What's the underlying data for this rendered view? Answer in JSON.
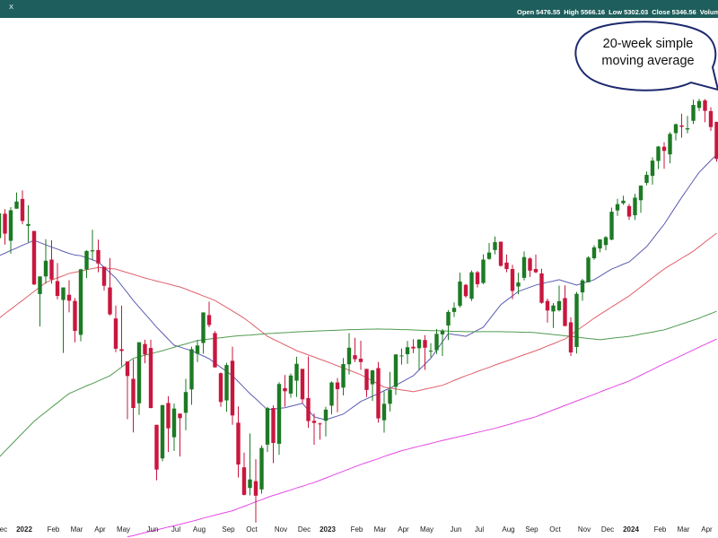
{
  "toolbar": {
    "symbol": "X",
    "fields": [
      {
        "label": "Open",
        "value": 5476.55
      },
      {
        "label": "High",
        "value": 5566.16
      },
      {
        "label": "Low",
        "value": 5302.03
      },
      {
        "label": "Close",
        "value": 5346.56
      },
      {
        "label": "Volume"
      }
    ]
  },
  "chart_data": {
    "type": "candlestick",
    "annotation": "20-week simple moving average",
    "log_scale": true,
    "ylim": [
      3445,
      5685
    ],
    "up_color": "#1d7a24",
    "down_color": "#c8173f",
    "categories": [
      "Dec",
      null,
      null,
      null,
      "2022",
      null,
      null,
      null,
      null,
      "Feb",
      null,
      null,
      null,
      "Mar",
      null,
      null,
      null,
      "Apr",
      null,
      null,
      null,
      "May",
      null,
      null,
      null,
      null,
      "Jun",
      null,
      null,
      null,
      "Jul",
      null,
      null,
      null,
      "Aug",
      null,
      null,
      null,
      null,
      "Sep",
      null,
      null,
      null,
      "Oct",
      null,
      null,
      null,
      null,
      "Nov",
      null,
      null,
      null,
      "Dec",
      null,
      null,
      null,
      "2023",
      null,
      null,
      null,
      null,
      "Feb",
      null,
      null,
      null,
      "Mar",
      null,
      null,
      null,
      "Apr",
      null,
      null,
      null,
      "May",
      null,
      null,
      null,
      null,
      "Jun",
      null,
      null,
      null,
      "Jul",
      null,
      null,
      null,
      null,
      "Aug",
      null,
      null,
      null,
      "Sep",
      null,
      null,
      null,
      "Oct",
      null,
      null,
      null,
      null,
      "Nov",
      null,
      null,
      null,
      "Dec",
      null,
      null,
      null,
      "2024",
      null,
      null,
      null,
      null,
      "Feb",
      null,
      null,
      null,
      "Mar",
      null,
      null,
      null,
      "Apr",
      null,
      null
    ],
    "open": [
      4600,
      4710,
      4588,
      4733,
      4778,
      4655,
      4632,
      4357,
      4432,
      4505,
      4412,
      4332,
      4354,
      4328,
      4188,
      4462,
      4541,
      4547,
      4474,
      4385,
      4255,
      4130,
      4081,
      4013,
      3919,
      4151,
      4135,
      3838,
      3715,
      3920,
      3792,
      3880,
      3883,
      3972,
      4112,
      4155,
      4269,
      4195,
      4035,
      3930,
      4084,
      3846,
      3683,
      3610,
      3634,
      3605,
      3765,
      3901,
      3768,
      3977,
      3956,
      4006,
      4052,
      3939,
      3853,
      3843,
      3853,
      3910,
      3999,
      3979,
      4070,
      4106,
      4092,
      4052,
      3992,
      4055,
      3855,
      3917,
      3982,
      4103,
      4110,
      4140,
      4134,
      4167,
      4124,
      4126,
      4190,
      4226,
      4282,
      4308,
      4396,
      4337,
      4450,
      4404,
      4508,
      4547,
      4584,
      4492,
      4464,
      4389,
      4426,
      4510,
      4464,
      4445,
      4328,
      4284,
      4289,
      4340,
      4239,
      4139,
      4364,
      4407,
      4511,
      4554,
      4569,
      4593,
      4725,
      4758,
      4745,
      4703,
      4772,
      4853,
      4886,
      4957,
      5026,
      4989,
      5093,
      5131,
      5111,
      5154,
      5219,
      5257,
      5203,
      5149
    ],
    "high": [
      4713,
      4731,
      4740,
      4808,
      4818,
      4749,
      4632,
      4432,
      4595,
      4590,
      4490,
      4385,
      4416,
      4340,
      4465,
      4546,
      4637,
      4593,
      4474,
      4512,
      4308,
      4308,
      4081,
      4090,
      4158,
      4168,
      4168,
      3838,
      3913,
      3946,
      3918,
      3880,
      4013,
      4140,
      4167,
      4280,
      4325,
      4203,
      4038,
      4076,
      4140,
      3907,
      3736,
      3806,
      3712,
      3762,
      3906,
      3911,
      4000,
      4028,
      4034,
      4100,
      4052,
      4101,
      3880,
      3846,
      3906,
      4003,
      4016,
      4095,
      4195,
      4176,
      4164,
      4052,
      4048,
      4079,
      3964,
      4040,
      4110,
      4133,
      4163,
      4170,
      4170,
      4187,
      4154,
      4212,
      4212,
      4290,
      4322,
      4448,
      4400,
      4458,
      4456,
      4528,
      4578,
      4607,
      4584,
      4527,
      4482,
      4448,
      4541,
      4515,
      4527,
      4465,
      4338,
      4319,
      4393,
      4394,
      4260,
      4366,
      4421,
      4520,
      4568,
      4595,
      4609,
      4738,
      4779,
      4793,
      4755,
      4802,
      4842,
      4907,
      4975,
      5030,
      5048,
      5098,
      5140,
      5190,
      5179,
      5261,
      5265,
      5264,
      5222,
      5149
    ],
    "low": [
      4592,
      4571,
      4531,
      4733,
      4662,
      4582,
      4395,
      4222,
      4401,
      4401,
      4335,
      4115,
      4280,
      4158,
      4162,
      4425,
      4505,
      4450,
      4372,
      4267,
      4118,
      4062,
      3859,
      3810,
      3875,
      4074,
      3900,
      3637,
      3705,
      3738,
      3742,
      3722,
      3818,
      3913,
      4079,
      4112,
      4219,
      4057,
      3906,
      3887,
      3838,
      3647,
      3584,
      3584,
      3491,
      3590,
      3738,
      3698,
      3728,
      3906,
      3940,
      3943,
      3918,
      3827,
      3764,
      3783,
      3795,
      3877,
      3885,
      3949,
      4030,
      4079,
      4048,
      3943,
      3928,
      3846,
      3809,
      3888,
      3951,
      4069,
      4072,
      4114,
      4049,
      4048,
      4098,
      4111,
      4103,
      4167,
      4261,
      4300,
      4341,
      4328,
      4385,
      4399,
      4504,
      4528,
      4474,
      4450,
      4335,
      4356,
      4415,
      4430,
      4446,
      4316,
      4238,
      4216,
      4284,
      4223,
      4103,
      4113,
      4329,
      4407,
      4504,
      4537,
      4546,
      4590,
      4700,
      4751,
      4682,
      4682,
      4714,
      4842,
      4845,
      4918,
      4920,
      4946,
      5057,
      5070,
      5092,
      5138,
      5203,
      5147,
      5104,
      4954
    ],
    "close": [
      4712,
      4620,
      4726,
      4766,
      4677,
      4663,
      4398,
      4432,
      4500,
      4419,
      4349,
      4385,
      4329,
      4204,
      4463,
      4543,
      4546,
      4488,
      4392,
      4272,
      4132,
      4123,
      4024,
      3901,
      4158,
      4109,
      3901,
      3675,
      3912,
      3825,
      3899,
      3863,
      3962,
      4130,
      4145,
      4280,
      4228,
      4058,
      3924,
      4067,
      3873,
      3693,
      3586,
      3640,
      3583,
      3753,
      3901,
      3771,
      3993,
      3965,
      4026,
      4072,
      3934,
      3852,
      3845,
      3840,
      3895,
      3999,
      3973,
      4071,
      4136,
      4090,
      4079,
      3970,
      4046,
      3862,
      3917,
      3971,
      4109,
      4105,
      4138,
      4133,
      4169,
      4136,
      4124,
      4192,
      4205,
      4282,
      4299,
      4410,
      4348,
      4450,
      4399,
      4505,
      4536,
      4582,
      4478,
      4464,
      4370,
      4406,
      4516,
      4457,
      4450,
      4320,
      4288,
      4309,
      4327,
      4224,
      4117,
      4358,
      4415,
      4514,
      4559,
      4594,
      4604,
      4719,
      4754,
      4770,
      4697,
      4784,
      4840,
      4891,
      4959,
      5027,
      5006,
      5089,
      5137,
      5124,
      5117,
      5234,
      5254,
      5204,
      5123,
      4967
    ],
    "moving_averages": [
      {
        "color": "#5b5bb0",
        "values": [
          4522,
          4533,
          4545,
          4556,
          4568,
          4579,
          4590,
          4580,
          4570,
          4560,
          4551,
          4541,
          4532,
          4525,
          4522,
          4513,
          4504,
          4495,
          4472,
          4448,
          4425,
          4393,
          4362,
          4330,
          4302,
          4274,
          4247,
          4219,
          4195,
          4170,
          4146,
          4139,
          4131,
          4124,
          4113,
          4103,
          4092,
          4075,
          4058,
          4042,
          4025,
          4002,
          3979,
          3956,
          3936,
          3915,
          3895,
          3897,
          3900,
          3902,
          3908,
          3913,
          3919,
          3893,
          3868,
          3862,
          3857,
          3864,
          3871,
          3878,
          3894,
          3910,
          3926,
          3936,
          3946,
          3956,
          3967,
          3977,
          3988,
          4000,
          4013,
          4025,
          4048,
          4071,
          4094,
          4127,
          4160,
          4193,
          4189,
          4186,
          4182,
          4194,
          4207,
          4219,
          4250,
          4281,
          4312,
          4331,
          4349,
          4368,
          4377,
          4386,
          4395,
          4401,
          4407,
          4412,
          4418,
          4410,
          4403,
          4395,
          4403,
          4410,
          4418,
          4433,
          4449,
          4464,
          4474,
          4485,
          4495,
          4517,
          4540,
          4562,
          4595,
          4629,
          4662,
          4703,
          4744,
          4785,
          4824,
          4864,
          4903,
          4931,
          4960,
          4988
        ]
      },
      {
        "color": "#e0606a",
        "values": [
          4256,
          4275,
          4293,
          4312,
          4330,
          4349,
          4368,
          4387,
          4406,
          4416,
          4426,
          4435,
          4445,
          4450,
          4455,
          4461,
          4466,
          4471,
          4469,
          4466,
          4464,
          4456,
          4448,
          4441,
          4433,
          4425,
          4419,
          4412,
          4406,
          4400,
          4393,
          4387,
          4378,
          4368,
          4359,
          4349,
          4340,
          4330,
          4315,
          4301,
          4286,
          4271,
          4256,
          4238,
          4219,
          4201,
          4182,
          4170,
          4159,
          4147,
          4136,
          4124,
          4116,
          4107,
          4099,
          4090,
          4082,
          4073,
          4064,
          4056,
          4047,
          4038,
          4029,
          4017,
          4005,
          3993,
          3981,
          3977,
          3974,
          3970,
          3967,
          3963,
          3968,
          3973,
          3978,
          3983,
          3988,
          3997,
          4007,
          4016,
          4025,
          4033,
          4042,
          4050,
          4058,
          4067,
          4075,
          4083,
          4091,
          4100,
          4108,
          4116,
          4124,
          4133,
          4143,
          4152,
          4162,
          4171,
          4188,
          4205,
          4222,
          4239,
          4256,
          4272,
          4287,
          4303,
          4318,
          4334,
          4349,
          4368,
          4387,
          4406,
          4426,
          4445,
          4464,
          4480,
          4495,
          4511,
          4526,
          4542,
          4562,
          4582,
          4602,
          4622
        ]
      },
      {
        "color": "#4f9a4f",
        "values": [
          3719,
          3741,
          3763,
          3785,
          3807,
          3829,
          3851,
          3869,
          3886,
          3904,
          3921,
          3939,
          3956,
          3966,
          3976,
          3986,
          3995,
          4005,
          4015,
          4025,
          4042,
          4059,
          4077,
          4094,
          4100,
          4106,
          4112,
          4118,
          4124,
          4131,
          4138,
          4145,
          4151,
          4158,
          4165,
          4168,
          4171,
          4174,
          4176,
          4179,
          4182,
          4184,
          4186,
          4187,
          4189,
          4191,
          4193,
          4194,
          4196,
          4197,
          4198,
          4200,
          4201,
          4202,
          4203,
          4204,
          4205,
          4206,
          4207,
          4208,
          4209,
          4209,
          4210,
          4211,
          4211,
          4212,
          4211,
          4211,
          4210,
          4209,
          4209,
          4208,
          4207,
          4206,
          4205,
          4205,
          4204,
          4203,
          4202,
          4202,
          4201,
          4201,
          4201,
          4201,
          4201,
          4201,
          4201,
          4200,
          4200,
          4199,
          4198,
          4198,
          4197,
          4194,
          4192,
          4189,
          4187,
          4184,
          4182,
          4179,
          4176,
          4173,
          4171,
          4168,
          4171,
          4174,
          4177,
          4179,
          4182,
          4186,
          4191,
          4195,
          4199,
          4204,
          4208,
          4216,
          4224,
          4232,
          4240,
          4248,
          4256,
          4266,
          4275,
          4285
        ]
      },
      {
        "color": "#e548e5",
        "values": [
          null,
          null,
          null,
          null,
          null,
          null,
          null,
          null,
          null,
          null,
          null,
          null,
          null,
          null,
          null,
          null,
          null,
          null,
          null,
          null,
          null,
          null,
          3443,
          3447,
          3452,
          3457,
          3462,
          3466,
          3471,
          3476,
          3480,
          3485,
          3490,
          3495,
          3500,
          3506,
          3511,
          3516,
          3521,
          3526,
          3531,
          3539,
          3546,
          3554,
          3562,
          3569,
          3577,
          3584,
          3590,
          3597,
          3603,
          3610,
          3616,
          3623,
          3629,
          3637,
          3645,
          3653,
          3661,
          3669,
          3677,
          3685,
          3693,
          3700,
          3707,
          3714,
          3722,
          3729,
          3736,
          3743,
          3748,
          3754,
          3759,
          3764,
          3769,
          3775,
          3780,
          3785,
          3790,
          3795,
          3800,
          3805,
          3810,
          3815,
          3820,
          3825,
          3831,
          3837,
          3843,
          3850,
          3856,
          3862,
          3868,
          3877,
          3885,
          3894,
          3902,
          3911,
          3919,
          3928,
          3936,
          3945,
          3953,
          3962,
          3971,
          3979,
          3988,
          3996,
          4005,
          4016,
          4027,
          4038,
          4049,
          4061,
          4072,
          4083,
          4094,
          4105,
          4116,
          4127,
          4138,
          4149,
          4160,
          4171
        ]
      }
    ]
  }
}
